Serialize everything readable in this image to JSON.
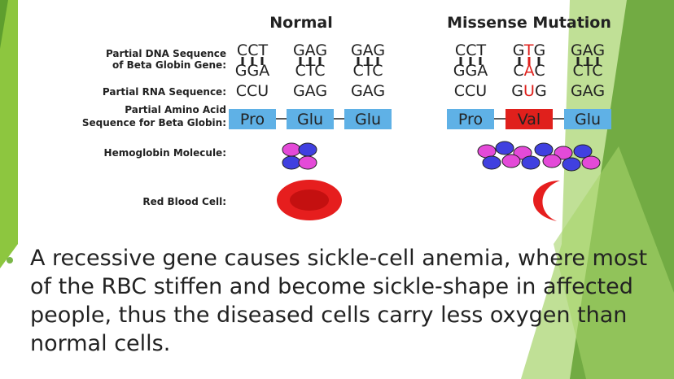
{
  "columns": [
    "Normal",
    "Missense Mutation"
  ],
  "row_labels": [
    [
      "Partial DNA Sequence",
      "of Beta Globin Gene:"
    ],
    "Partial RNA Sequence:",
    [
      "Partial Amino Acid",
      "Sequence for Beta Globin:"
    ],
    "Hemoglobin Molecule:",
    "Red Blood Cell:"
  ],
  "normal": {
    "dna_top": [
      "CCT",
      "GAG",
      "GAG"
    ],
    "dna_bottom": [
      "GGA",
      "CTC",
      "CTC"
    ],
    "rna": [
      "CCU",
      "GAG",
      "GAG"
    ],
    "amino": [
      "Pro",
      "Glu",
      "Glu"
    ]
  },
  "mutation": {
    "dna_top": [
      "CCT",
      [
        "G",
        "T",
        "G"
      ],
      "GAG"
    ],
    "dna_bottom": [
      "GGA",
      [
        "C",
        "A",
        "C"
      ],
      "CTC"
    ],
    "rna": [
      "CCU",
      [
        "G",
        "U",
        "G"
      ],
      "GAG"
    ],
    "amino": [
      "Pro",
      "Val",
      "Glu"
    ]
  },
  "bullet": "A recessive gene causes sickle-cell anemia, where most of the RBC stiffen and become sickle-shape in affected people, thus the diseased cells carry less oxygen than normal cells."
}
